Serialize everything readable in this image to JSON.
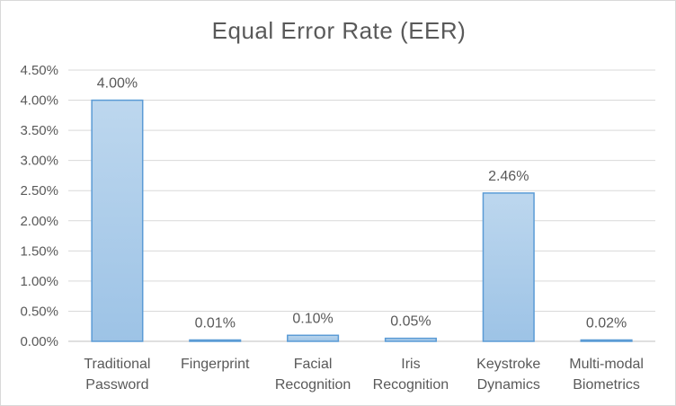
{
  "chart_data": {
    "type": "bar",
    "title": "Equal Error Rate (EER)",
    "xlabel": "",
    "ylabel": "",
    "categories": [
      [
        "Traditional",
        "Password"
      ],
      [
        "Fingerprint"
      ],
      [
        "Facial",
        "Recognition"
      ],
      [
        "Iris",
        "Recognition"
      ],
      [
        "Keystroke",
        "Dynamics"
      ],
      [
        "Multi-modal",
        "Biometrics"
      ]
    ],
    "values": [
      4.0,
      0.01,
      0.1,
      0.05,
      2.46,
      0.02
    ],
    "data_labels": [
      "4.00%",
      "0.01%",
      "0.10%",
      "0.05%",
      "2.46%",
      "0.02%"
    ],
    "ylim": [
      0,
      4.5
    ],
    "yticks": [
      0,
      0.5,
      1.0,
      1.5,
      2.0,
      2.5,
      3.0,
      3.5,
      4.0,
      4.5
    ],
    "ytick_labels": [
      "0.00%",
      "0.50%",
      "1.00%",
      "1.50%",
      "2.00%",
      "2.50%",
      "3.00%",
      "3.50%",
      "4.00%",
      "4.50%"
    ],
    "grid": true,
    "legend": "none",
    "colors": {
      "bar_fill_top": "#bdd7ee",
      "bar_fill_bottom": "#9dc3e6",
      "bar_stroke": "#5b9bd5"
    }
  }
}
